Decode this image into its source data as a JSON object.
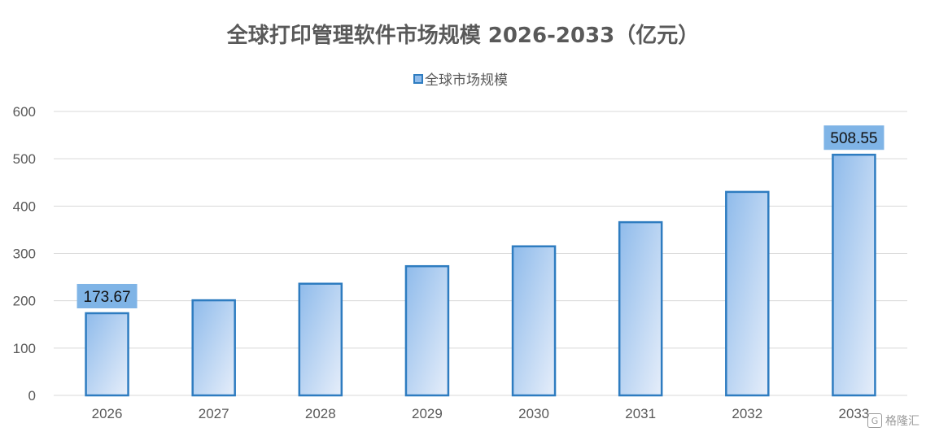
{
  "chart_data": {
    "type": "bar",
    "title": "全球打印管理软件市场规模 2026-2033（亿元）",
    "legend": {
      "label": "全球市场规模",
      "position": "top-center"
    },
    "categories": [
      "2026",
      "2027",
      "2028",
      "2029",
      "2030",
      "2031",
      "2032",
      "2033"
    ],
    "series": [
      {
        "name": "全球市场规模",
        "values": [
          173.67,
          201,
          236,
          273,
          315,
          366,
          430,
          508.55
        ]
      }
    ],
    "data_labels": [
      {
        "category": "2026",
        "text": "173.67"
      },
      {
        "category": "2033",
        "text": "508.55"
      }
    ],
    "ylim": [
      0,
      600
    ],
    "yticks": [
      0,
      100,
      200,
      300,
      400,
      500,
      600
    ],
    "grid": true,
    "colors": {
      "bar_fill_start": "#8fbbeb",
      "bar_fill_end": "#e6eefa",
      "bar_stroke": "#2e7cc0",
      "label_bg": "#7fb4e6",
      "gridline": "#d9d9d9",
      "axis_text": "#595959",
      "title_text": "#595959"
    }
  },
  "watermark": {
    "text": "格隆汇",
    "icon": "g-logo-icon"
  }
}
